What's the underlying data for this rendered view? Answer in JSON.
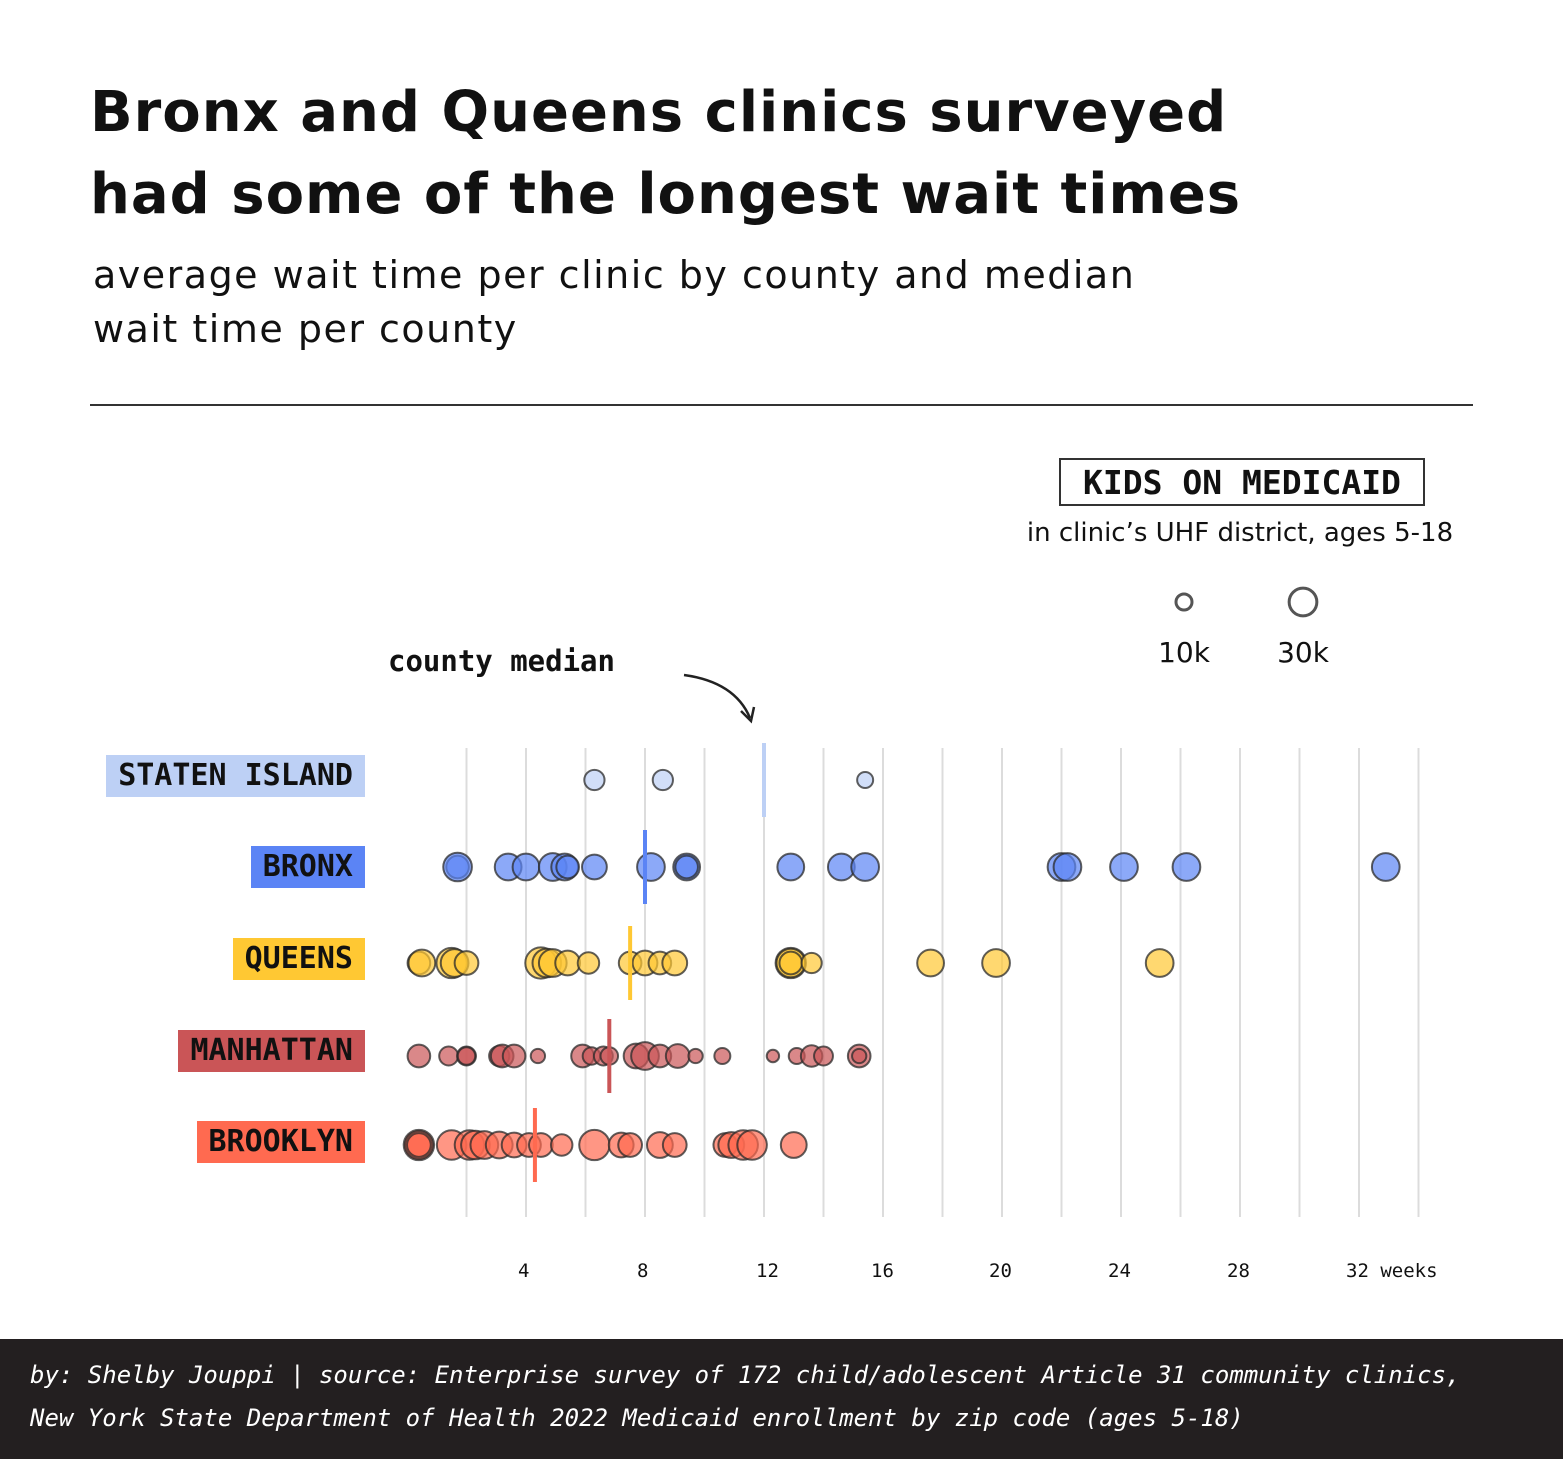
{
  "title_line1": "Bronx and Queens clinics surveyed",
  "title_line2": "had some of the longest wait times",
  "subtitle_line1": "average wait time per clinic by county and median",
  "subtitle_line2": "wait time per county",
  "legend": {
    "title": "KIDS ON MEDICAID",
    "subtitle": "in clinic’s UHF district, ages 5-18",
    "small_label": "10k",
    "large_label": "30k"
  },
  "median_note": "county median",
  "footer": {
    "line1": "by: Shelby Jouppi | source: Enterprise survey of 172 child/adolescent Article 31 community clinics,",
    "line2": "New York State Department of Health 2022 Medicaid enrollment by zip code (ages 5-18)"
  },
  "chart_data": {
    "type": "scatter",
    "title": "Bronx and Queens clinics surveyed had some of the longest wait times",
    "subtitle": "average wait time per clinic by county and median wait time per county",
    "xlabel": "weeks",
    "x_ticks": [
      4,
      8,
      12,
      16,
      20,
      24,
      28,
      32
    ],
    "x_tick_labels": [
      "4",
      "8",
      "12",
      "16",
      "20",
      "24",
      "28",
      "32 weeks"
    ],
    "xlim": [
      0,
      32
    ],
    "grid": true,
    "size_legend": {
      "title": "KIDS ON MEDICAID",
      "values": [
        10000,
        30000
      ],
      "labels": [
        "10k",
        "30k"
      ]
    },
    "series": [
      {
        "name": "STATEN ISLAND",
        "color": "#bdd0f5",
        "median": 12,
        "points": [
          [
            6.3,
            16000
          ],
          [
            8.6,
            16000
          ],
          [
            15.4,
            10000
          ]
        ]
      },
      {
        "name": "BRONX",
        "color": "#5b84f5",
        "median": 8,
        "points": [
          [
            1.7,
            20000
          ],
          [
            1.7,
            32000
          ],
          [
            3.4,
            28000
          ],
          [
            4.0,
            28000
          ],
          [
            4.9,
            30000
          ],
          [
            5.3,
            28000
          ],
          [
            5.4,
            20000
          ],
          [
            6.3,
            24000
          ],
          [
            8.2,
            30000
          ],
          [
            9.4,
            28000
          ],
          [
            9.4,
            20000
          ],
          [
            12.9,
            28000
          ],
          [
            14.6,
            28000
          ],
          [
            15.4,
            30000
          ],
          [
            22.0,
            30000
          ],
          [
            22.2,
            30000
          ],
          [
            24.1,
            30000
          ],
          [
            26.2,
            30000
          ],
          [
            32.9,
            30000
          ]
        ]
      },
      {
        "name": "QUEENS",
        "color": "#ffc833",
        "median": 7.5,
        "points": [
          [
            0.4,
            20000
          ],
          [
            0.5,
            28000
          ],
          [
            1.5,
            36000
          ],
          [
            1.6,
            30000
          ],
          [
            2.0,
            22000
          ],
          [
            4.5,
            38000
          ],
          [
            4.7,
            32000
          ],
          [
            4.9,
            30000
          ],
          [
            5.4,
            24000
          ],
          [
            6.1,
            18000
          ],
          [
            7.5,
            20000
          ],
          [
            8.0,
            24000
          ],
          [
            8.5,
            20000
          ],
          [
            9.0,
            24000
          ],
          [
            12.9,
            36000
          ],
          [
            12.9,
            32000
          ],
          [
            12.9,
            20000
          ],
          [
            13.6,
            16000
          ],
          [
            17.6,
            28000
          ],
          [
            19.8,
            30000
          ],
          [
            25.3,
            30000
          ]
        ]
      },
      {
        "name": "MANHATTAN",
        "color": "#ca5557",
        "median": 6.8,
        "points": [
          [
            0.4,
            20000
          ],
          [
            1.4,
            14000
          ],
          [
            2.0,
            14000
          ],
          [
            2.0,
            12000
          ],
          [
            3.1,
            16000
          ],
          [
            3.2,
            20000
          ],
          [
            3.6,
            20000
          ],
          [
            4.4,
            8000
          ],
          [
            5.9,
            20000
          ],
          [
            6.2,
            12000
          ],
          [
            6.6,
            14000
          ],
          [
            6.8,
            12000
          ],
          [
            7.7,
            24000
          ],
          [
            8.0,
            30000
          ],
          [
            8.5,
            20000
          ],
          [
            9.1,
            22000
          ],
          [
            9.7,
            8000
          ],
          [
            10.6,
            10000
          ],
          [
            12.3,
            6000
          ],
          [
            13.1,
            10000
          ],
          [
            13.6,
            18000
          ],
          [
            14.0,
            14000
          ],
          [
            15.2,
            20000
          ],
          [
            15.2,
            8000
          ]
        ]
      },
      {
        "name": "BROOKLYN",
        "color": "#ff6a50",
        "median": 4.3,
        "points": [
          [
            0.4,
            36000
          ],
          [
            0.4,
            30000
          ],
          [
            0.4,
            22000
          ],
          [
            1.5,
            34000
          ],
          [
            2.1,
            34000
          ],
          [
            2.3,
            32000
          ],
          [
            2.6,
            30000
          ],
          [
            3.1,
            28000
          ],
          [
            3.6,
            24000
          ],
          [
            4.1,
            22000
          ],
          [
            4.5,
            22000
          ],
          [
            5.2,
            18000
          ],
          [
            6.3,
            36000
          ],
          [
            7.2,
            24000
          ],
          [
            7.5,
            22000
          ],
          [
            8.5,
            26000
          ],
          [
            9.0,
            22000
          ],
          [
            10.7,
            22000
          ],
          [
            10.9,
            26000
          ],
          [
            11.3,
            34000
          ],
          [
            11.6,
            34000
          ],
          [
            13.0,
            26000
          ]
        ]
      }
    ]
  }
}
